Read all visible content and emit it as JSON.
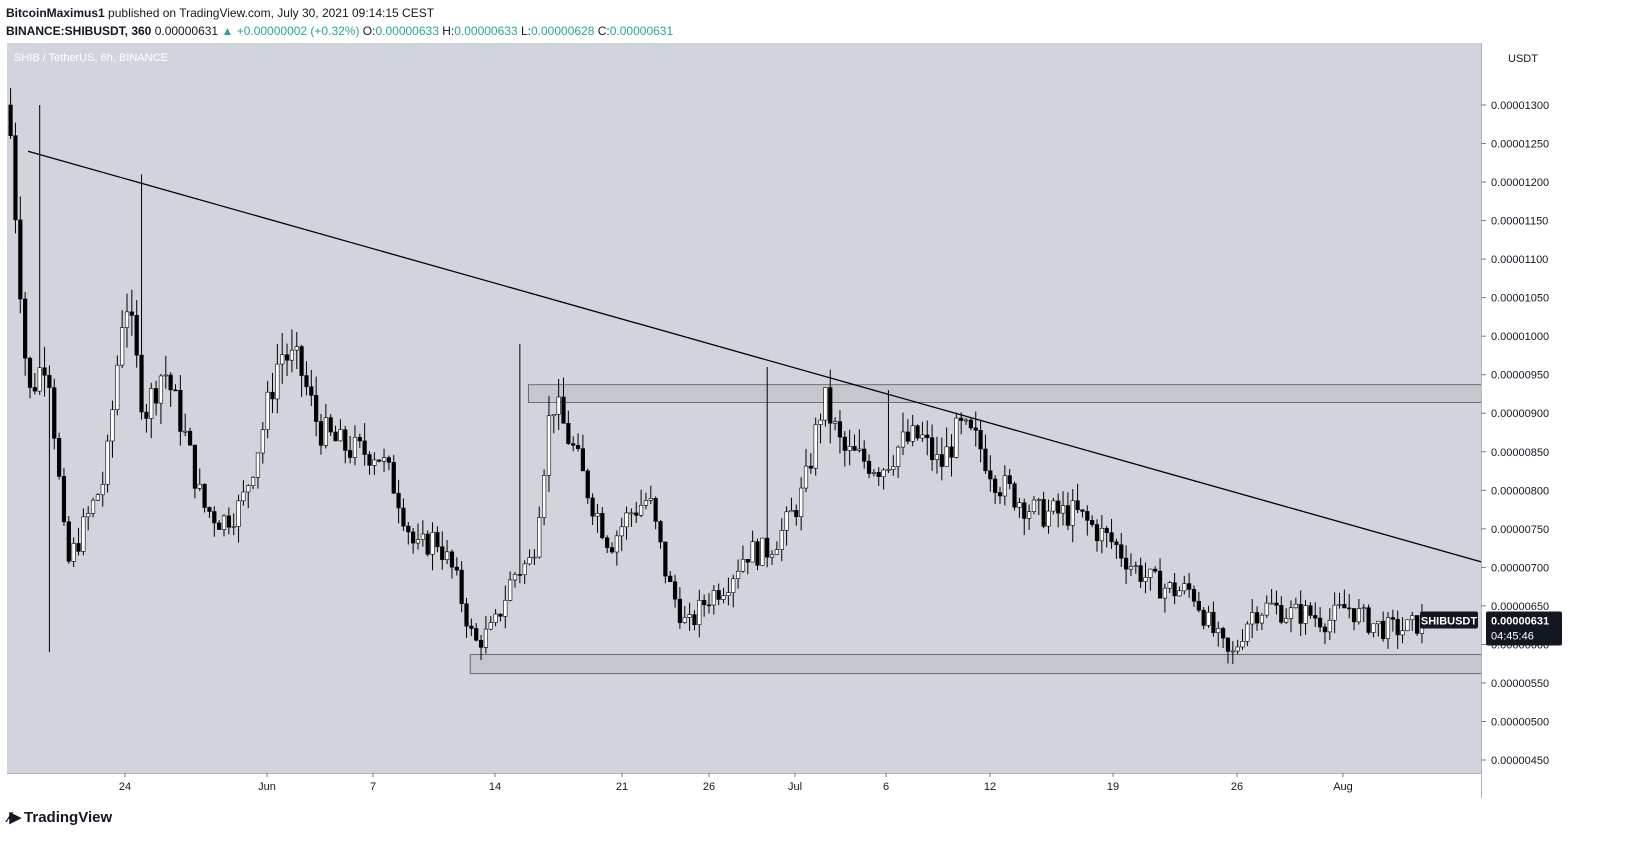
{
  "header": {
    "author": "BitcoinMaximus1",
    "published_text": "published on TradingView.com, July 30, 2021 09:14:15 CEST",
    "symbol_line": "BINANCE:SHIBUSDT, 360",
    "last": "0.00000631",
    "change": "+0.00000002 (+0.32%)",
    "o_label": "O:",
    "o_value": "0.00000633",
    "h_label": "H:",
    "h_value": "0.00000633",
    "l_label": "L:",
    "l_value": "0.00000628",
    "c_label": "C:",
    "c_value": "0.00000631"
  },
  "chart_legend": "SHIB / TetherUS, 6h, BINANCE",
  "footer": {
    "logo_text": "TradingView"
  },
  "chart_data": {
    "type": "candlestick",
    "currency_label": "USDT",
    "price_tag": {
      "symbol": "SHIBUSDT",
      "price": "0.00000631",
      "countdown": "04:45:46"
    },
    "y_ticks": [
      "0.00001300",
      "0.00001250",
      "0.00001200",
      "0.00001150",
      "0.00001100",
      "0.00001050",
      "0.00001000",
      "0.00000950",
      "0.00000900",
      "0.00000850",
      "0.00000800",
      "0.00000750",
      "0.00000700",
      "0.00000650",
      "0.00000600",
      "0.00000550",
      "0.00000500",
      "0.00000450"
    ],
    "x_ticks": [
      "24",
      "Jun",
      "7",
      "14",
      "21",
      "26",
      "Jul",
      "6",
      "12",
      "19",
      "26",
      "Aug"
    ],
    "trendline": {
      "start": [
        "2021-05-19",
        1.24e-05
      ],
      "end": [
        "2021-08-01",
        6.975e-06
      ]
    },
    "zones": [
      {
        "name": "resistance",
        "from": "2021-06-14",
        "to": "2021-08-01",
        "low": 9.14e-06,
        "high": 9.37e-06
      },
      {
        "name": "support",
        "from": "2021-06-11",
        "to": "2021-08-01",
        "low": 5.62e-06,
        "high": 5.87e-06
      }
    ],
    "close_path": [
      [
        "2021-05-18",
        1.3e-05
      ],
      [
        "2021-05-19",
        9.2e-06
      ],
      [
        "2021-05-20",
        9.8e-06
      ],
      [
        "2021-05-21",
        7e-06
      ],
      [
        "2021-05-22",
        7.6e-06
      ],
      [
        "2021-05-23",
        8.2e-06
      ],
      [
        "2021-05-24",
        1.06e-05
      ],
      [
        "2021-05-25",
        9e-06
      ],
      [
        "2021-05-26",
        9.6e-06
      ],
      [
        "2021-05-27",
        8.8e-06
      ],
      [
        "2021-05-28",
        7.8e-06
      ],
      [
        "2021-05-29",
        7.6e-06
      ],
      [
        "2021-05-30",
        7.8e-06
      ],
      [
        "2021-05-31",
        8.7e-06
      ],
      [
        "2021-06-01",
        9.8e-06
      ],
      [
        "2021-06-02",
        9.6e-06
      ],
      [
        "2021-06-03",
        8.8e-06
      ],
      [
        "2021-06-04",
        8.6e-06
      ],
      [
        "2021-06-05",
        8.5e-06
      ],
      [
        "2021-06-06",
        8.5e-06
      ],
      [
        "2021-06-07",
        8e-06
      ],
      [
        "2021-06-08",
        7.2e-06
      ],
      [
        "2021-06-09",
        7.4e-06
      ],
      [
        "2021-06-10",
        6.9e-06
      ],
      [
        "2021-06-11",
        6e-06
      ],
      [
        "2021-06-12",
        6.2e-06
      ],
      [
        "2021-06-13",
        6.9e-06
      ],
      [
        "2021-06-14",
        7.1e-06
      ],
      [
        "2021-06-15",
        9.2e-06
      ],
      [
        "2021-06-16",
        8.6e-06
      ],
      [
        "2021-06-17",
        7.9e-06
      ],
      [
        "2021-06-18",
        7.3e-06
      ],
      [
        "2021-06-19",
        7.7e-06
      ],
      [
        "2021-06-20",
        7.9e-06
      ],
      [
        "2021-06-21",
        6.8e-06
      ],
      [
        "2021-06-22",
        6.2e-06
      ],
      [
        "2021-06-23",
        6.6e-06
      ],
      [
        "2021-06-24",
        6.8e-06
      ],
      [
        "2021-06-25",
        7.2e-06
      ],
      [
        "2021-06-26",
        7.2e-06
      ],
      [
        "2021-06-27",
        7.5e-06
      ],
      [
        "2021-06-28",
        8e-06
      ],
      [
        "2021-06-29",
        9.2e-06
      ],
      [
        "2021-06-30",
        8.5e-06
      ],
      [
        "2021-07-01",
        8.4e-06
      ],
      [
        "2021-07-02",
        8.3e-06
      ],
      [
        "2021-07-03",
        8.6e-06
      ],
      [
        "2021-07-04",
        8.7e-06
      ],
      [
        "2021-07-05",
        8.3e-06
      ],
      [
        "2021-07-06",
        8.8e-06
      ],
      [
        "2021-07-07",
        8.6e-06
      ],
      [
        "2021-07-08",
        8.1e-06
      ],
      [
        "2021-07-09",
        7.9e-06
      ],
      [
        "2021-07-10",
        7.7e-06
      ],
      [
        "2021-07-11",
        7.7e-06
      ],
      [
        "2021-07-12",
        7.7e-06
      ],
      [
        "2021-07-13",
        7.5e-06
      ],
      [
        "2021-07-14",
        7.3e-06
      ],
      [
        "2021-07-15",
        7e-06
      ],
      [
        "2021-07-16",
        6.8e-06
      ],
      [
        "2021-07-17",
        6.7e-06
      ],
      [
        "2021-07-18",
        6.7e-06
      ],
      [
        "2021-07-19",
        6.2e-06
      ],
      [
        "2021-07-20",
        5.8e-06
      ],
      [
        "2021-07-21",
        6.4e-06
      ],
      [
        "2021-07-22",
        6.5e-06
      ],
      [
        "2021-07-23",
        6.4e-06
      ],
      [
        "2021-07-24",
        6.4e-06
      ],
      [
        "2021-07-25",
        6.3e-06
      ],
      [
        "2021-07-26",
        6.5e-06
      ],
      [
        "2021-07-27",
        6.3e-06
      ],
      [
        "2021-07-28",
        6.2e-06
      ],
      [
        "2021-07-29",
        6.2e-06
      ],
      [
        "2021-07-30",
        6.31e-06
      ]
    ],
    "grid": false,
    "legend": "none",
    "colors": {
      "background": "#d1d4dc",
      "candle": "#000000",
      "candle_up": "#ffffff",
      "trendline": "#000000",
      "zone_fill": "#c0c3ca",
      "zone_stroke": "#555555",
      "price_tag": "#131722"
    }
  }
}
